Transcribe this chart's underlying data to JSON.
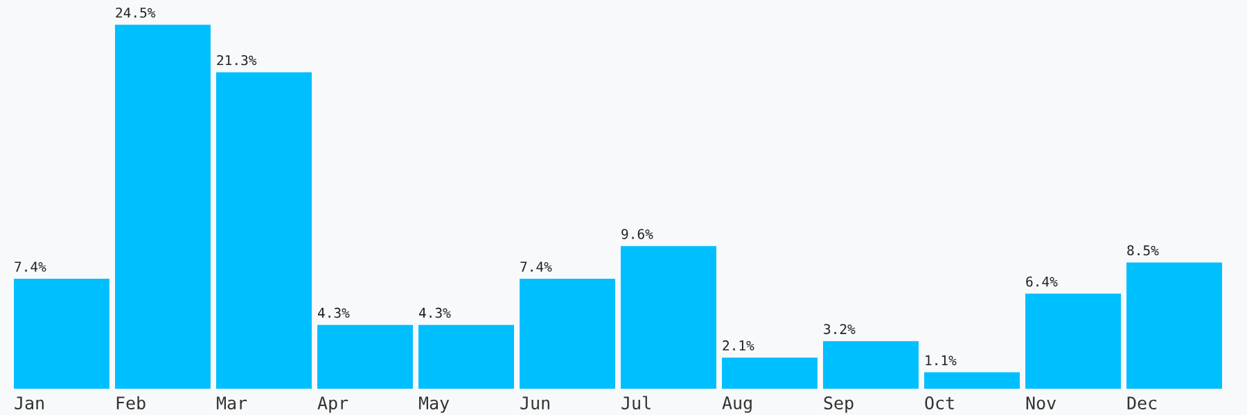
{
  "chart_data": {
    "type": "bar",
    "categories": [
      "Jan",
      "Feb",
      "Mar",
      "Apr",
      "May",
      "Jun",
      "Jul",
      "Aug",
      "Sep",
      "Oct",
      "Nov",
      "Dec"
    ],
    "values": [
      7.4,
      24.5,
      21.3,
      4.3,
      4.3,
      7.4,
      9.6,
      2.1,
      3.2,
      1.1,
      6.4,
      8.5
    ],
    "value_labels": [
      "7.4%",
      "24.5%",
      "21.3%",
      "4.3%",
      "4.3%",
      "7.4%",
      "9.6%",
      "2.1%",
      "3.2%",
      "1.1%",
      "6.4%",
      "8.5%"
    ],
    "color": "#00bfff"
  }
}
